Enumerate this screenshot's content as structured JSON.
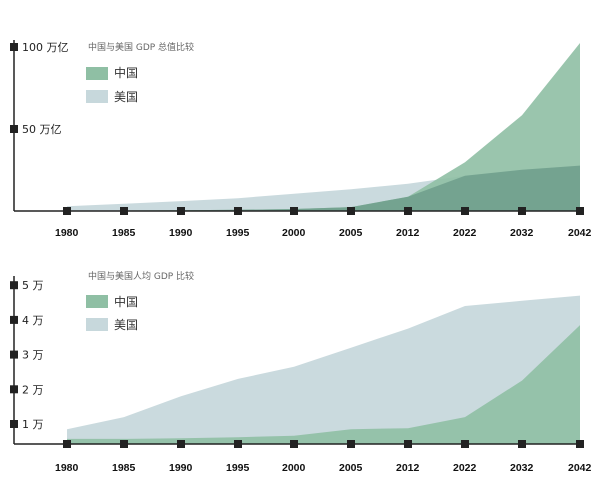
{
  "chart_data": [
    {
      "type": "area",
      "title": "中国与美国 GDP 总值比较",
      "x": [
        "1980",
        "1985",
        "1990",
        "1995",
        "2000",
        "2005",
        "2012",
        "2022",
        "2032",
        "2042"
      ],
      "y_tick_labels": [
        "100 万亿",
        "50 万亿"
      ],
      "y_tick_values": [
        100,
        50
      ],
      "ylim": [
        0,
        100
      ],
      "unit": "万亿",
      "legend_position": "top-left",
      "series": [
        {
          "name": "中国",
          "color": "#8fbfa4",
          "values": [
            0.3,
            0.3,
            0.4,
            0.7,
            1.2,
            2.3,
            8.5,
            29,
            57,
            100
          ]
        },
        {
          "name": "美国",
          "color": "#c7d8dc",
          "values": [
            2.8,
            4.3,
            5.9,
            7.6,
            10.3,
            13.0,
            16.2,
            21.0,
            24.5,
            27.0
          ]
        }
      ]
    },
    {
      "type": "area",
      "title": "中国与美国人均 GDP 比较",
      "x": [
        "1980",
        "1985",
        "1990",
        "1995",
        "2000",
        "2005",
        "2012",
        "2022",
        "2032",
        "2042"
      ],
      "y_tick_labels": [
        "5 万",
        "4 万",
        "3 万",
        "2 万",
        "1 万"
      ],
      "y_tick_values": [
        5,
        4,
        3,
        2,
        1
      ],
      "ylim": [
        0.5,
        5
      ],
      "unit": "万",
      "legend_position": "top-left",
      "series": [
        {
          "name": "中国",
          "color": "#8fbfa4",
          "values": [
            0.57,
            0.57,
            0.59,
            0.62,
            0.66,
            0.85,
            0.88,
            1.2,
            2.25,
            3.85
          ]
        },
        {
          "name": "美国",
          "color": "#c7d8dc",
          "values": [
            0.85,
            1.2,
            1.8,
            2.3,
            2.65,
            3.2,
            3.75,
            4.4,
            4.55,
            4.7
          ]
        }
      ]
    }
  ]
}
